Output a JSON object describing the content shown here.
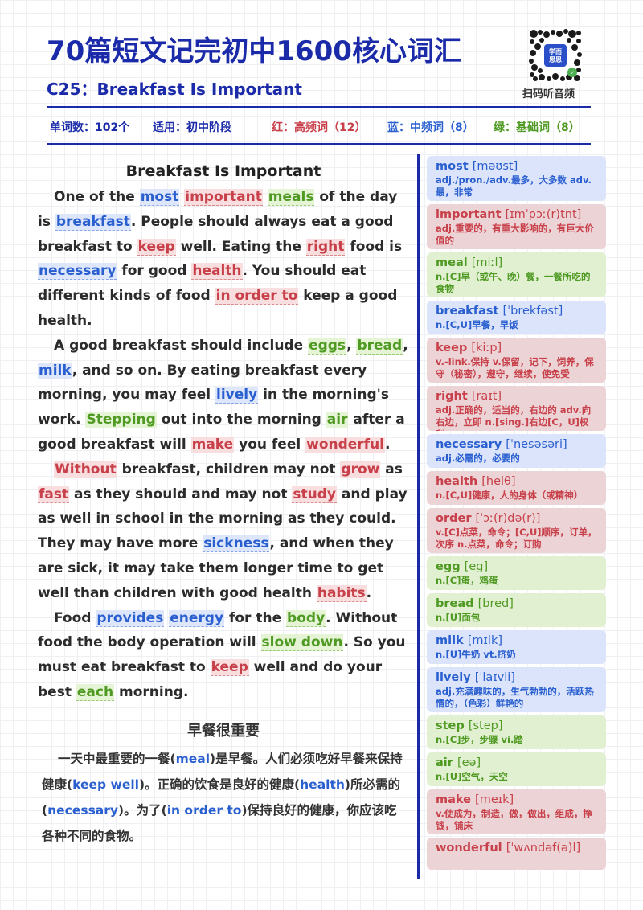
{
  "header": {
    "title": "70篇短文记完初中1600核心词汇",
    "subtitle": "C25：Breakfast Is Important",
    "qr_label": "扫码听音频",
    "qr_center": "学而\n思思"
  },
  "stats": {
    "word_count": "单词数：102个",
    "level": "适用：初中阶段",
    "red": "红：高频词（12）",
    "blue": "蓝：中频词（8）",
    "green": "绿：基础词（8）"
  },
  "colors": {
    "red": "#c8404a",
    "blue": "#2a5fd0",
    "green": "#4f9a23",
    "navy": "#1a2aa8"
  },
  "article": {
    "title": "Breakfast Is Important",
    "paragraphs": [
      [
        {
          "t": "One of the "
        },
        {
          "t": "most",
          "c": "blue"
        },
        {
          "t": " "
        },
        {
          "t": "important",
          "c": "red"
        },
        {
          "t": " "
        },
        {
          "t": "meals",
          "c": "green"
        },
        {
          "t": " of the day is "
        },
        {
          "t": "breakfast",
          "c": "blue"
        },
        {
          "t": ". People should always eat a good breakfast to "
        },
        {
          "t": "keep",
          "c": "red"
        },
        {
          "t": " well. Eating the "
        },
        {
          "t": "right",
          "c": "red"
        },
        {
          "t": " food is "
        },
        {
          "t": "necessary",
          "c": "blue"
        },
        {
          "t": " for good "
        },
        {
          "t": "health",
          "c": "red"
        },
        {
          "t": ". You should eat different kinds of food "
        },
        {
          "t": "in order to",
          "c": "red"
        },
        {
          "t": " keep a good health."
        }
      ],
      [
        {
          "t": "A good breakfast should include "
        },
        {
          "t": "eggs",
          "c": "green"
        },
        {
          "t": ", "
        },
        {
          "t": "bread",
          "c": "green"
        },
        {
          "t": ", "
        },
        {
          "t": "milk",
          "c": "blue"
        },
        {
          "t": ", and so on. By eating breakfast every morning, you may feel "
        },
        {
          "t": "lively",
          "c": "blue"
        },
        {
          "t": " in the morning's work. "
        },
        {
          "t": "Stepping",
          "c": "green"
        },
        {
          "t": " out into the morning "
        },
        {
          "t": "air",
          "c": "green"
        },
        {
          "t": " after a good breakfast will "
        },
        {
          "t": "make",
          "c": "red"
        },
        {
          "t": " you feel "
        },
        {
          "t": "wonderful",
          "c": "red"
        },
        {
          "t": "."
        }
      ],
      [
        {
          "t": "Without",
          "c": "red"
        },
        {
          "t": " breakfast, children may not "
        },
        {
          "t": "grow",
          "c": "red"
        },
        {
          "t": " as "
        },
        {
          "t": "fast",
          "c": "red"
        },
        {
          "t": " as they should and may not "
        },
        {
          "t": "study",
          "c": "red"
        },
        {
          "t": " and play as well in school in the morning as they could. They may have more "
        },
        {
          "t": "sickness",
          "c": "blue"
        },
        {
          "t": ", and when they are sick, it may take them longer time to get well than children with good health "
        },
        {
          "t": "habits",
          "c": "red"
        },
        {
          "t": "."
        }
      ],
      [
        {
          "t": "Food "
        },
        {
          "t": "provides",
          "c": "blue"
        },
        {
          "t": " "
        },
        {
          "t": "energy",
          "c": "blue"
        },
        {
          "t": " for the "
        },
        {
          "t": "body",
          "c": "green"
        },
        {
          "t": ". Without food the body operation will "
        },
        {
          "t": "slow down",
          "c": "green"
        },
        {
          "t": ". So you must eat breakfast to "
        },
        {
          "t": "keep",
          "c": "red"
        },
        {
          "t": " well and do your best "
        },
        {
          "t": "each",
          "c": "green"
        },
        {
          "t": " morning."
        }
      ]
    ]
  },
  "translation": {
    "title": "早餐很重要",
    "segments": [
      {
        "t": "一天中最重要的一餐("
      },
      {
        "t": "meal",
        "en": true
      },
      {
        "t": ")是早餐。人们必须吃好早餐来保持健康("
      },
      {
        "t": "keep well",
        "en": true
      },
      {
        "t": ")。正确的饮食是良好的健康("
      },
      {
        "t": "health",
        "en": true
      },
      {
        "t": ")所必需的("
      },
      {
        "t": "necessary",
        "en": true
      },
      {
        "t": ")。为了("
      },
      {
        "t": "in order to",
        "en": true
      },
      {
        "t": ")保持良好的健康，你应该吃各种不同的食物。"
      }
    ]
  },
  "vocab": [
    {
      "word": "most",
      "pron": "[məʊst]",
      "def": "adj./pron./adv.最多，大多数 adv.最，非常",
      "c": "blue"
    },
    {
      "word": "important",
      "pron": "[ɪmˈpɔː(r)tnt]",
      "def": "adj.重要的，有重大影响的，有巨大价值的",
      "c": "red"
    },
    {
      "word": "meal",
      "pron": "[miːl]",
      "def": "n.[C]早（或午、晚）餐，一餐所吃的食物",
      "c": "green"
    },
    {
      "word": "breakfast",
      "pron": "[ˈbrekfəst]",
      "def": "n.[C,U]早餐，早饭",
      "c": "blue"
    },
    {
      "word": "keep",
      "pron": "[kiːp]",
      "def": "v.-link.保持 v.保留，记下，饲养，保守（秘密），遵守，继续，使免受",
      "c": "red"
    },
    {
      "word": "right",
      "pron": "[raɪt]",
      "def": "adj.正确的，适当的，右边的 adv.向右边，立即 n.[sing.]右边[C，U]权利",
      "c": "red"
    },
    {
      "word": "necessary",
      "pron": "[ˈnesəsəri]",
      "def": "adj.必需的，必要的",
      "c": "blue"
    },
    {
      "word": "health",
      "pron": "[helθ]",
      "def": "n.[C,U]健康，人的身体（或精神）",
      "c": "red"
    },
    {
      "word": "order",
      "pron": "[ˈɔː(r)də(r)]",
      "def": "v.[C]点菜，命令；[C,U]顺序，订单，次序 n.点菜，命令；订购",
      "c": "red"
    },
    {
      "word": "egg",
      "pron": "[eg]",
      "def": "n.[C]蛋，鸡蛋",
      "c": "green"
    },
    {
      "word": "bread",
      "pron": "[bred]",
      "def": "n.[U]面包",
      "c": "green"
    },
    {
      "word": "milk",
      "pron": "[mɪlk]",
      "def": "n.[U]牛奶 vt.挤奶",
      "c": "blue"
    },
    {
      "word": "lively",
      "pron": "[ˈlaɪvli]",
      "def": "adj.充满趣味的，生气勃勃的，活跃热情的，（色彩）鲜艳的",
      "c": "blue"
    },
    {
      "word": "step",
      "pron": "[step]",
      "def": "n.[C]步，步骤 vi.踏",
      "c": "green"
    },
    {
      "word": "air",
      "pron": "[eə]",
      "def": "n.[U]空气，天空",
      "c": "green"
    },
    {
      "word": "make",
      "pron": "[meɪk]",
      "def": "v.使成为，制造，做，做出，组成，挣钱，铺床",
      "c": "red"
    },
    {
      "word": "wonderful",
      "pron": "[ˈwʌndəf(ə)l]",
      "def": "",
      "c": "red"
    }
  ]
}
